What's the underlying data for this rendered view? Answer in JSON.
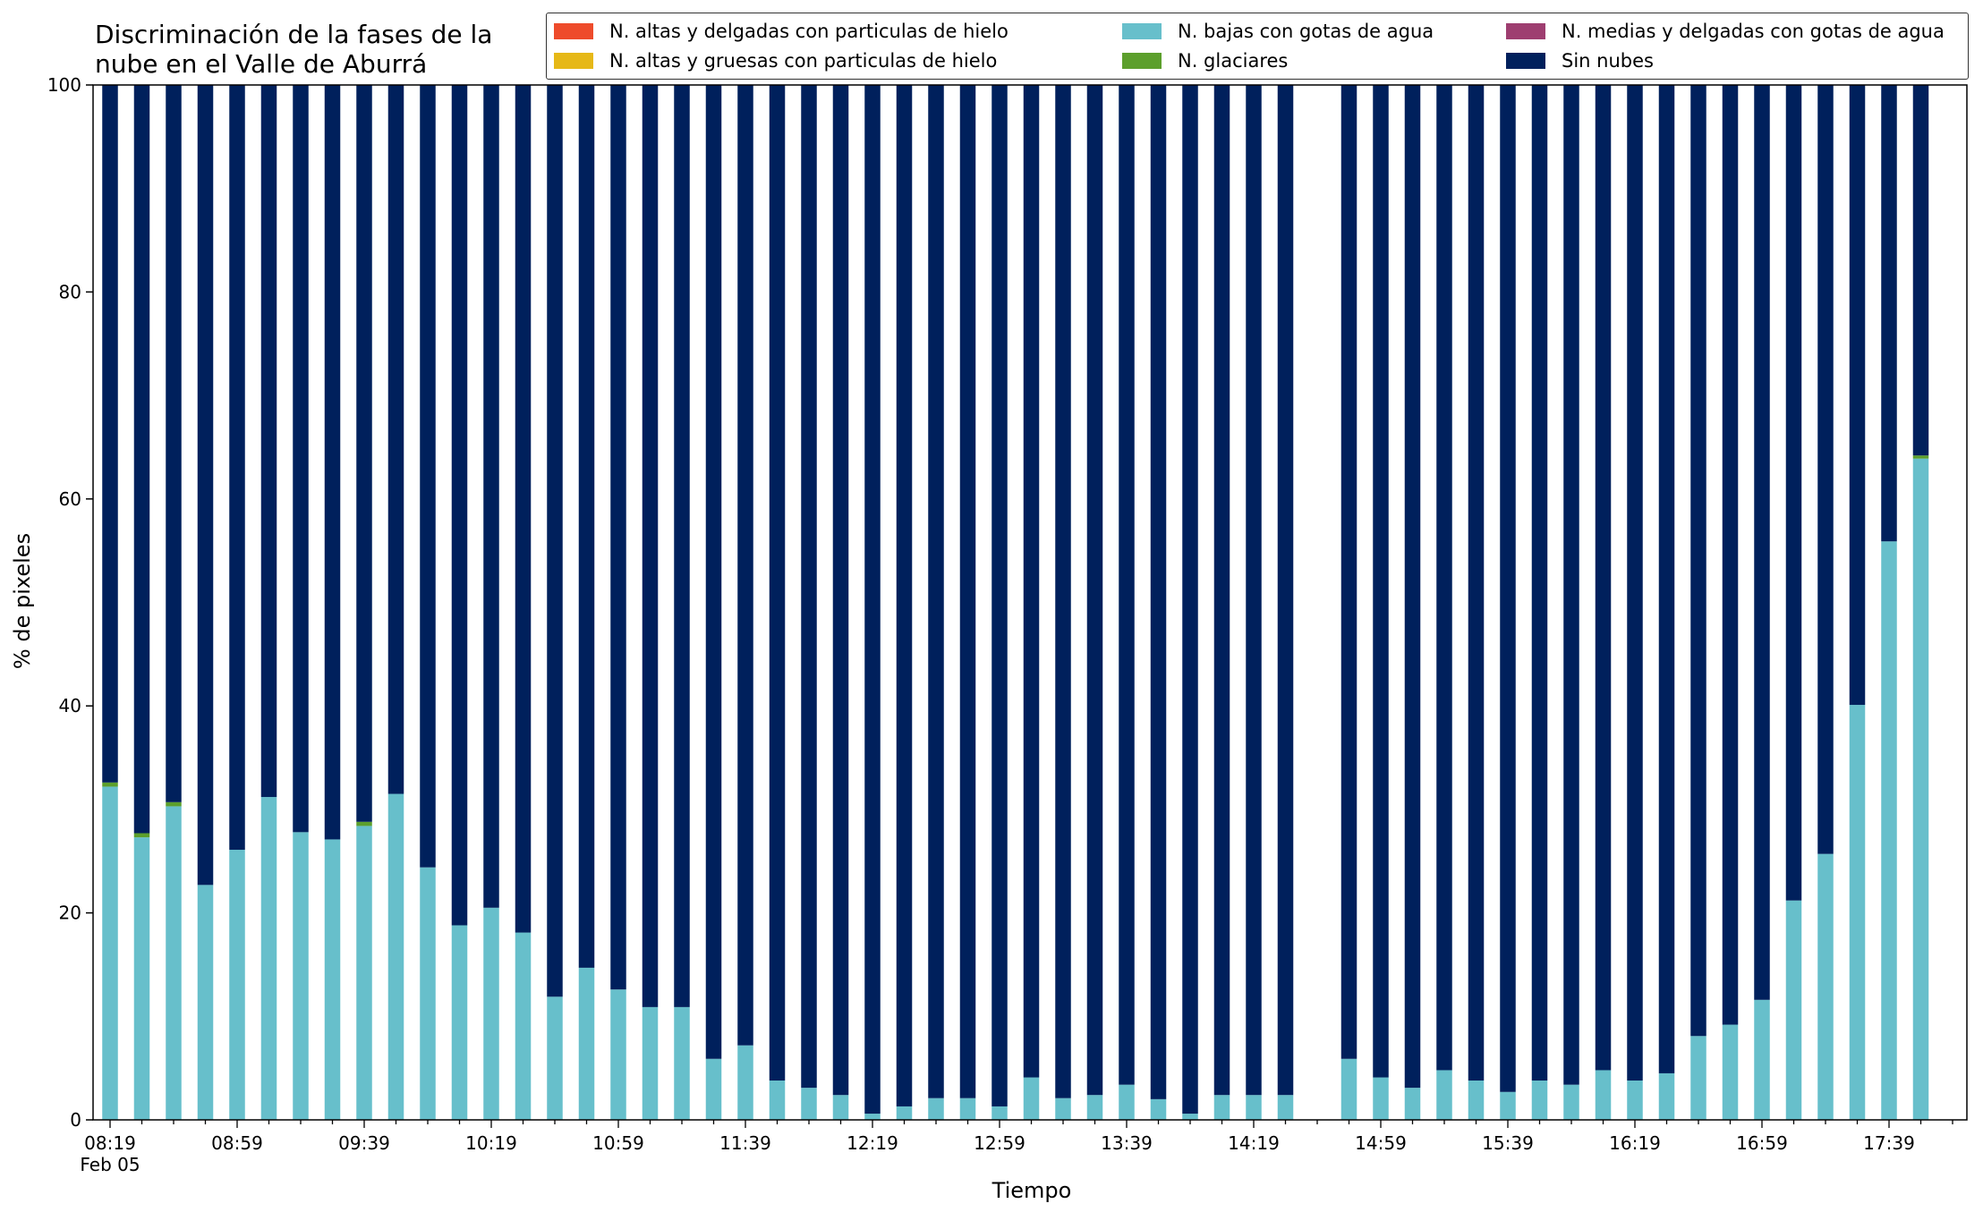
{
  "chart_data": {
    "type": "bar",
    "stacked": true,
    "title_lines": [
      "Discriminación de la fases de la",
      "nube en el Valle de Aburrá"
    ],
    "xlabel": "Tiempo",
    "ylabel": "% de pixeles",
    "ylim": [
      0,
      100
    ],
    "yticks": [
      "0",
      "20",
      "40",
      "60",
      "80",
      "100"
    ],
    "grid": false,
    "legend_position": "top-right",
    "xtick_date_label": "Feb 05",
    "xtick_labels": [
      "08:19",
      "08:59",
      "09:39",
      "10:19",
      "10:59",
      "11:39",
      "12:19",
      "12:59",
      "13:39",
      "14:19",
      "14:59",
      "15:39",
      "16:19",
      "16:59",
      "17:39"
    ],
    "series": [
      {
        "name": "N. altas y delgadas con particulas de hielo",
        "color": "#ee4b2b"
      },
      {
        "name": "N. altas y gruesas con particulas de hielo",
        "color": "#e6b817"
      },
      {
        "name": "N. bajas con gotas de agua",
        "color": "#67bfcb",
        "values": [
          32.2,
          27.3,
          30.3,
          22.7,
          26.1,
          31.2,
          27.8,
          27.1,
          28.4,
          31.5,
          24.4,
          18.8,
          20.5,
          18.1,
          11.9,
          14.7,
          12.6,
          10.9,
          10.9,
          5.9,
          7.2,
          3.8,
          3.1,
          2.4,
          0.6,
          1.3,
          2.1,
          2.1,
          1.3,
          4.1,
          2.1,
          2.4,
          3.4,
          2.0,
          0.6,
          2.4,
          2.4,
          2.4,
          null,
          5.9,
          4.1,
          3.1,
          4.8,
          3.8,
          2.7,
          3.8,
          3.4,
          4.8,
          3.8,
          4.5,
          8.1,
          9.2,
          11.6,
          21.2,
          25.7,
          40.1,
          55.9,
          63.9
        ]
      },
      {
        "name": "N. glaciares",
        "color": "#5c9f2c",
        "values": [
          0.4,
          0.4,
          0.4,
          0,
          0,
          0,
          0,
          0,
          0.4,
          0,
          0,
          0,
          0,
          0,
          0,
          0,
          0,
          0,
          0,
          0,
          0,
          0,
          0,
          0,
          0,
          0,
          0,
          0,
          0,
          0,
          0,
          0,
          0,
          0,
          0,
          0,
          0,
          0,
          null,
          0,
          0,
          0,
          0,
          0,
          0,
          0,
          0,
          0,
          0,
          0,
          0,
          0,
          0,
          0,
          0,
          0,
          0,
          0.3
        ]
      },
      {
        "name": "N. medias y delgadas con gotas de agua",
        "color": "#9e3e70"
      },
      {
        "name": "Sin nubes",
        "color": "#00205c",
        "values": [
          67.4,
          72.3,
          69.3,
          77.3,
          73.9,
          68.8,
          72.2,
          72.9,
          71.2,
          68.5,
          75.6,
          81.2,
          79.5,
          81.9,
          88.1,
          85.3,
          87.4,
          89.1,
          89.1,
          94.1,
          92.8,
          96.2,
          96.9,
          97.6,
          99.4,
          98.7,
          97.9,
          97.9,
          98.7,
          95.9,
          97.9,
          97.6,
          96.6,
          98.0,
          99.4,
          97.6,
          97.6,
          97.6,
          null,
          94.1,
          95.9,
          96.9,
          95.2,
          96.2,
          97.3,
          96.2,
          96.6,
          95.2,
          96.2,
          95.5,
          91.9,
          90.8,
          88.4,
          78.8,
          74.3,
          59.9,
          44.1,
          35.8
        ]
      }
    ]
  }
}
